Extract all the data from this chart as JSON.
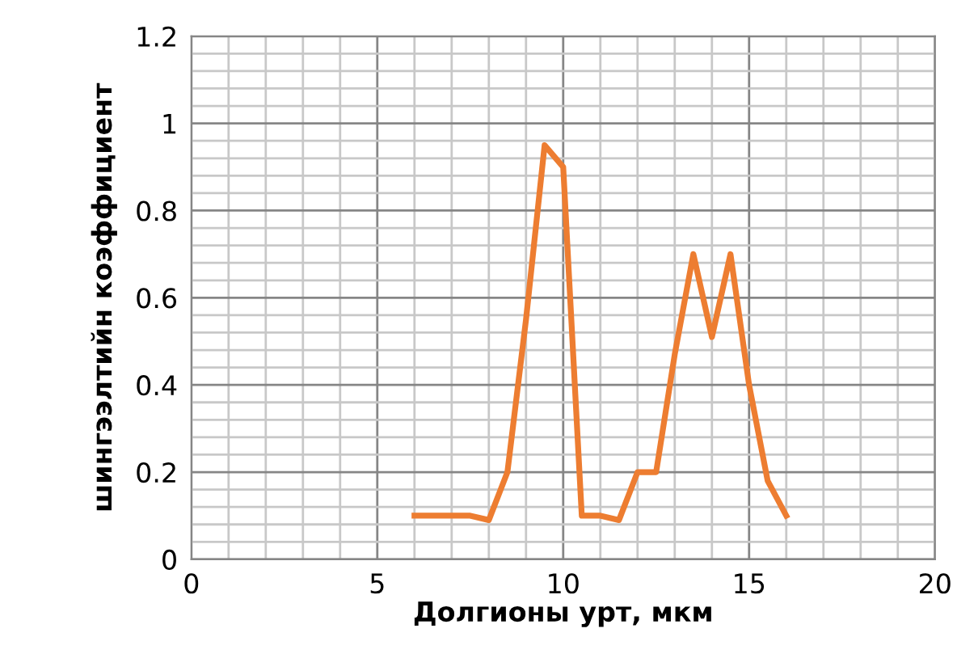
{
  "chart_data": {
    "type": "line",
    "xlabel": "Долгионы урт, мкм",
    "ylabel": "шингээлтийн коэффициент",
    "x": [
      6,
      7,
      7.5,
      8,
      8.5,
      9,
      9.5,
      10,
      10.5,
      11,
      11.5,
      12,
      12.5,
      13,
      13.5,
      14,
      14.5,
      15,
      15.5,
      16
    ],
    "series": [
      {
        "color": "#ed7d31",
        "values": [
          0.1,
          0.1,
          0.1,
          0.09,
          0.2,
          0.55,
          0.95,
          0.9,
          0.1,
          0.1,
          0.09,
          0.2,
          0.2,
          0.47,
          0.7,
          0.51,
          0.7,
          0.4,
          0.18,
          0.1
        ]
      }
    ],
    "xlim": [
      0,
      20
    ],
    "xticks": [
      0,
      5,
      10,
      15,
      20
    ],
    "ylim": [
      0,
      1.2
    ],
    "yticks": [
      0,
      0.2,
      0.4,
      0.6,
      0.8,
      1,
      1.2
    ],
    "grid": true,
    "marker": "none",
    "line_style": "solid"
  }
}
